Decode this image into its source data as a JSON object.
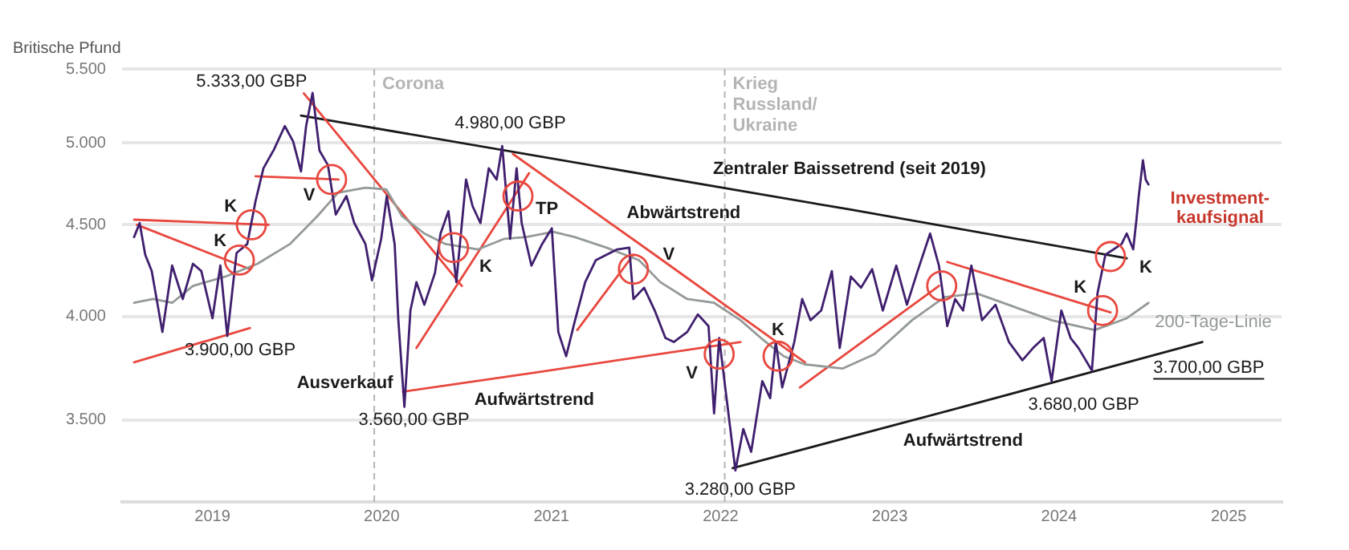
{
  "chart_data": {
    "type": "line",
    "ylabel": "Britische Pfund",
    "log": "y",
    "grid": "y",
    "legend": false,
    "marker": "none",
    "xlim": [
      "2018-06-20",
      "2025-04-25"
    ],
    "xticks": [
      "2019",
      "2020",
      "2021",
      "2022",
      "2023",
      "2024",
      "2025"
    ],
    "ylim": [
      3150,
      5500
    ],
    "yticks": [
      {
        "value": 3500,
        "label": "3.500"
      },
      {
        "value": 4000,
        "label": "4.000"
      },
      {
        "value": 4500,
        "label": "4.500"
      },
      {
        "value": 5000,
        "label": "5.000"
      },
      {
        "value": 5500,
        "label": "5.500"
      }
    ],
    "series": [
      {
        "color": "#3f1f6e",
        "x": [
          "2018-07-16",
          "2018-07-28",
          "2018-08-09",
          "2018-08-23",
          "2018-09-15",
          "2018-10-06",
          "2018-10-29",
          "2018-11-20",
          "2018-12-08",
          "2019-01-01",
          "2019-01-18",
          "2019-02-02",
          "2019-02-22",
          "2019-03-17",
          "2019-04-04",
          "2019-04-21",
          "2019-05-14",
          "2019-06-06",
          "2019-06-24",
          "2019-07-11",
          "2019-07-22",
          "2019-08-05",
          "2019-08-20",
          "2019-09-07",
          "2019-09-24",
          "2019-10-17",
          "2019-11-03",
          "2019-11-27",
          "2019-12-11",
          "2019-12-31",
          "2020-01-12",
          "2020-01-29",
          "2020-02-06",
          "2020-02-19",
          "2020-03-03",
          "2020-03-16",
          "2020-04-02",
          "2020-04-25",
          "2020-05-07",
          "2020-05-24",
          "2020-06-10",
          "2020-07-01",
          "2020-07-15",
          "2020-08-01",
          "2020-08-19",
          "2020-09-05",
          "2020-09-17",
          "2020-10-04",
          "2020-10-18",
          "2020-10-29",
          "2020-11-19",
          "2020-12-12",
          "2021-01-02",
          "2021-01-16",
          "2021-02-02",
          "2021-02-20",
          "2021-03-15",
          "2021-04-07",
          "2021-04-30",
          "2021-05-23",
          "2021-06-18",
          "2021-06-27",
          "2021-07-20",
          "2021-08-12",
          "2021-09-04",
          "2021-09-22",
          "2021-10-21",
          "2021-11-13",
          "2021-12-06",
          "2021-12-18",
          "2021-12-29",
          "2022-02-02",
          "2022-02-19",
          "2022-03-08",
          "2022-04-01",
          "2022-04-18",
          "2022-04-30",
          "2022-05-14",
          "2022-06-09",
          "2022-06-26",
          "2022-07-14",
          "2022-08-06",
          "2022-08-29",
          "2022-09-15",
          "2022-10-09",
          "2022-10-31",
          "2022-11-24",
          "2022-12-17",
          "2023-01-15",
          "2023-02-07",
          "2023-03-02",
          "2023-03-29",
          "2023-04-17",
          "2023-05-05",
          "2023-05-22",
          "2023-06-08",
          "2023-06-26",
          "2023-07-19",
          "2023-08-17",
          "2023-09-15",
          "2023-10-14",
          "2023-11-06",
          "2023-11-29",
          "2023-12-16",
          "2024-01-06",
          "2024-01-26",
          "2024-02-12",
          "2024-03-12",
          "2024-03-24",
          "2024-04-10",
          "2024-05-15",
          "2024-05-26",
          "2024-06-09",
          "2024-06-16",
          "2024-06-21",
          "2024-06-30",
          "2024-07-06",
          "2024-07-12"
        ],
        "values": [
          4430,
          4510,
          4330,
          4240,
          3920,
          4270,
          4090,
          4280,
          4240,
          3990,
          4270,
          3900,
          4340,
          4390,
          4640,
          4840,
          4960,
          5110,
          5010,
          4820,
          5110,
          5333,
          4950,
          4860,
          4560,
          4670,
          4510,
          4390,
          4190,
          4420,
          4670,
          4390,
          3980,
          3560,
          4030,
          4180,
          4060,
          4230,
          4450,
          4580,
          4180,
          4770,
          4610,
          4510,
          4840,
          4770,
          4980,
          4420,
          4840,
          4510,
          4270,
          4390,
          4480,
          3920,
          3800,
          3970,
          4180,
          4300,
          4330,
          4360,
          4370,
          4090,
          4150,
          4030,
          3890,
          3870,
          3920,
          4010,
          3950,
          3530,
          3890,
          3280,
          3460,
          3360,
          3680,
          3600,
          3870,
          3650,
          3870,
          4090,
          3980,
          4030,
          4240,
          3840,
          4210,
          4150,
          4250,
          4030,
          4270,
          4060,
          4240,
          4450,
          4270,
          3950,
          4090,
          4030,
          4270,
          3980,
          4060,
          3870,
          3780,
          3840,
          3890,
          3680,
          4030,
          3890,
          3840,
          3730,
          4120,
          4330,
          4390,
          4450,
          4360,
          4530,
          4670,
          4890,
          4770,
          4740
        ]
      },
      {
        "name": "200-Tage-Linie",
        "color": "#949a97",
        "x": [
          "2018-07-16",
          "2018-08-26",
          "2018-10-06",
          "2018-11-20",
          "2019-01-29",
          "2019-04-08",
          "2019-06-17",
          "2019-08-15",
          "2019-09-29",
          "2019-11-27",
          "2020-01-11",
          "2020-02-14",
          "2020-04-02",
          "2020-05-18",
          "2020-07-27",
          "2020-09-22",
          "2020-11-08",
          "2021-01-05",
          "2021-02-20",
          "2021-04-30",
          "2021-07-09",
          "2021-08-24",
          "2021-10-21",
          "2021-12-18",
          "2022-02-13",
          "2022-03-29",
          "2022-05-17",
          "2022-07-02",
          "2022-09-21",
          "2022-11-29",
          "2023-02-18",
          "2023-04-29",
          "2023-07-07",
          "2023-09-14",
          "2023-12-16",
          "2024-03-18",
          "2024-05-26",
          "2024-07-12"
        ],
        "values": [
          4070,
          4090,
          4070,
          4160,
          4210,
          4280,
          4390,
          4550,
          4690,
          4720,
          4710,
          4550,
          4450,
          4390,
          4360,
          4420,
          4430,
          4460,
          4430,
          4370,
          4300,
          4180,
          4090,
          4070,
          3980,
          3890,
          3800,
          3760,
          3740,
          3810,
          3980,
          4100,
          4120,
          4060,
          3980,
          3930,
          3990,
          4070
        ]
      },
      {
        "color": "#e8483f",
        "x": [
          "2018-07-16",
          "2019-05-02"
        ],
        "values": [
          4530,
          4500
        ]
      },
      {
        "color": "#e8483f",
        "x": [
          "2018-07-22",
          "2019-03-23"
        ],
        "values": [
          4500,
          4250
        ]
      },
      {
        "color": "#e8483f",
        "x": [
          "2018-07-16",
          "2019-03-23"
        ],
        "values": [
          3770,
          3940
        ]
      },
      {
        "color": "#e8483f",
        "x": [
          "2019-04-04",
          "2019-09-30"
        ],
        "values": [
          4790,
          4770
        ]
      },
      {
        "color": "#e8483f",
        "x": [
          "2019-07-17",
          "2020-06-22"
        ],
        "values": [
          5330,
          4160
        ]
      },
      {
        "color": "#e8483f",
        "x": [
          "2020-03-16",
          "2020-11-14"
        ],
        "values": [
          3840,
          4810
        ]
      },
      {
        "color": "#e8483f",
        "x": [
          "2020-10-10",
          "2021-08-12",
          "2022-07-02"
        ],
        "values": [
          4930,
          4330,
          3770
        ]
      },
      {
        "color": "#e8483f",
        "x": [
          "2020-02-16",
          "2020-11-25",
          "2022-02-13"
        ],
        "values": [
          3630,
          3720,
          3870
        ]
      },
      {
        "color": "#e8483f",
        "x": [
          "2021-02-26",
          "2021-06-27"
        ],
        "values": [
          3930,
          4330
        ]
      },
      {
        "color": "#e8483f",
        "x": [
          "2022-06-21",
          "2023-04-17"
        ],
        "values": [
          3650,
          4160
        ]
      },
      {
        "color": "#e8483f",
        "x": [
          "2023-05-05",
          "2024-04-21"
        ],
        "values": [
          4290,
          4020
        ]
      },
      {
        "color": "#1a1a1a",
        "x": [
          "2019-07-11",
          "2022-10-06",
          "2024-05-26"
        ],
        "values": [
          5180,
          4590,
          4310
        ]
      },
      {
        "color": "#1a1a1a",
        "x": [
          "2022-01-27",
          "2023-06-08",
          "2024-11-05"
        ],
        "values": [
          3290,
          3560,
          3870
        ]
      },
      {
        "type": "scatter",
        "marker": "circle",
        "color": "#e8483f",
        "x": [
          "2019-03-26",
          "2019-02-28",
          "2019-09-15",
          "2020-06-04",
          "2020-10-21",
          "2021-06-27",
          "2021-12-29",
          "2022-05-05",
          "2023-04-23",
          "2024-04-04",
          "2024-04-21"
        ],
        "values": [
          4500,
          4300,
          4770,
          4370,
          4670,
          4250,
          3810,
          3800,
          4160,
          4030,
          4320
        ]
      }
    ],
    "ref_lines": [
      {
        "axis": "x",
        "value": "2019-12-16",
        "label": "Corona",
        "color": "#b4b4b4",
        "line_style": "dashed"
      },
      {
        "axis": "x",
        "value": "2022-01-10",
        "label": "Krieg\nRussland/\nUkraine",
        "color": "#b4b4b4",
        "line_style": "dashed"
      }
    ],
    "annotations": [
      {
        "text": "5.333,00 GBP",
        "x": "2019-08-05",
        "y": 5333
      },
      {
        "text": "3.900,00 GBP",
        "x": "2019-02-02",
        "y": 3900
      },
      {
        "text": "Ausverkauf",
        "x": "2020-02-19",
        "y": 3560
      },
      {
        "text": "3.560,00 GBP",
        "x": "2020-02-19",
        "y": 3560
      },
      {
        "text": "4.980,00 GBP",
        "x": "2020-09-17",
        "y": 4980
      },
      {
        "text": "TP",
        "x": "2020-10-21",
        "y": 4670
      },
      {
        "text": "Abwärtstrend",
        "x": "2021-08-12",
        "y": 4330
      },
      {
        "text": "Zentraler Baissetrend (seit 2019)",
        "x": "2022-10-06",
        "y": 4590
      },
      {
        "text": "V",
        "x": "2019-09-15",
        "y": 4770
      },
      {
        "text": "K",
        "x": "2019-03-26",
        "y": 4500
      },
      {
        "text": "K",
        "x": "2019-02-28",
        "y": 4300
      },
      {
        "text": "K",
        "x": "2020-06-04",
        "y": 4370
      },
      {
        "text": "V",
        "x": "2021-06-27",
        "y": 4250
      },
      {
        "text": "V",
        "x": "2021-12-29",
        "y": 3810
      },
      {
        "text": "Aufwärtstrend",
        "x": "2020-11-25",
        "y": 3720
      },
      {
        "text": "K",
        "x": "2022-05-05",
        "y": 3800
      },
      {
        "text": "Aufwärtstrend",
        "x": "2023-06-08",
        "y": 3560
      },
      {
        "text": "K",
        "x": "2024-04-04",
        "y": 4030
      },
      {
        "text": "K",
        "x": "2024-04-21",
        "y": 4320
      },
      {
        "text": "Investment-\nkaufsignal",
        "x": "2024-06-30",
        "y": 4890
      },
      {
        "text": "3.280,00 GBP",
        "x": "2022-02-02",
        "y": 3280
      },
      {
        "text": "3.680,00 GBP",
        "x": "2023-12-16",
        "y": 3680
      },
      {
        "text": "3.700,00 GBP",
        "x": "2024-11-05",
        "y": 3870
      }
    ]
  }
}
